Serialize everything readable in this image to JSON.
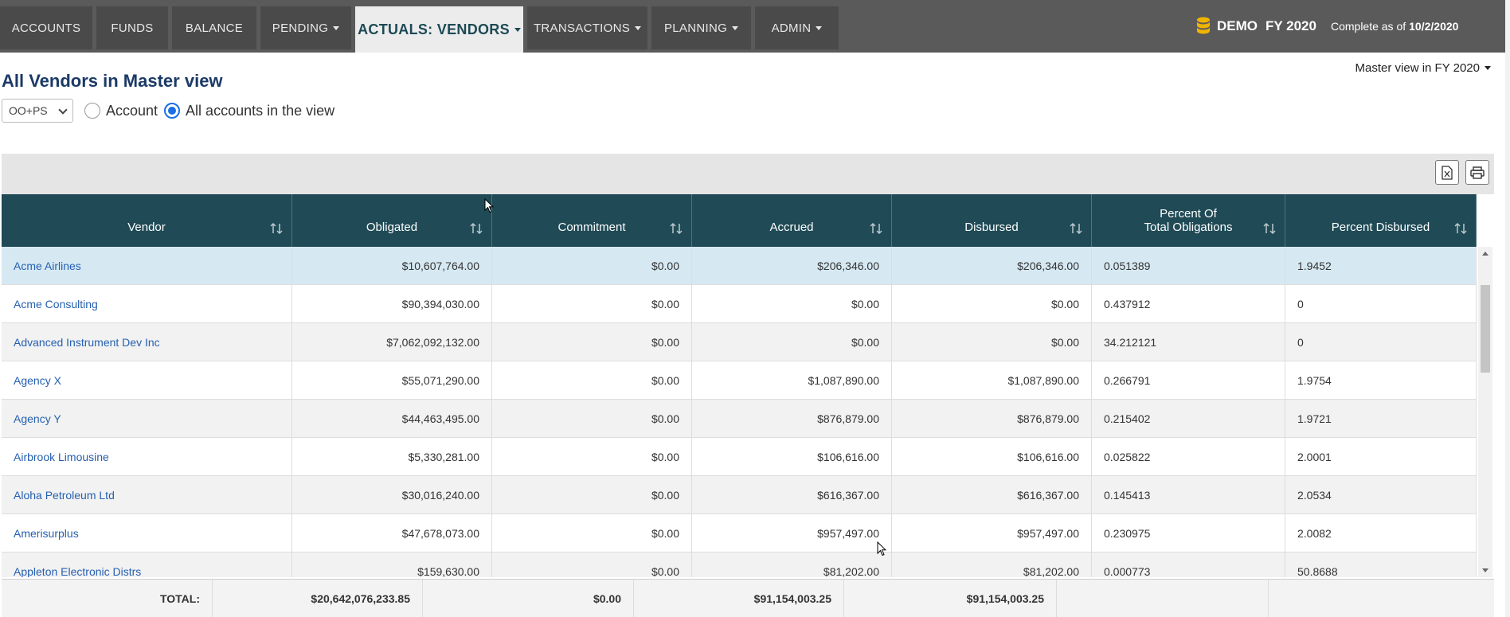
{
  "nav": {
    "tabs": [
      {
        "label": "ACCOUNTS",
        "dropdown": false
      },
      {
        "label": "FUNDS",
        "dropdown": false
      },
      {
        "label": "BALANCE",
        "dropdown": false
      },
      {
        "label": "PENDING",
        "dropdown": true
      },
      {
        "label": "ACTUALS: VENDORS",
        "dropdown": true,
        "active": true
      },
      {
        "label": "TRANSACTIONS",
        "dropdown": true
      },
      {
        "label": "PLANNING",
        "dropdown": true
      },
      {
        "label": "ADMIN",
        "dropdown": true
      }
    ],
    "brand_name": "DEMO",
    "fiscal_year": "FY 2020",
    "complete_label": "Complete as of",
    "complete_date": "10/2/2020",
    "icon": "database-icon",
    "accent": "#f0b400"
  },
  "page": {
    "title": "All Vendors in Master view",
    "view_selector": "Master view in FY 2020"
  },
  "filters": {
    "dropdown_value": "OO+PS",
    "radio_account": "Account",
    "radio_all": "All accounts in the view",
    "selected": "All accounts in the view"
  },
  "toolbar": {
    "excel_icon": "excel-export-icon",
    "print_icon": "print-icon"
  },
  "table": {
    "columns": [
      "Vendor",
      "Obligated",
      "Commitment",
      "Accrued",
      "Disbursed",
      "Percent Of\nTotal Obligations",
      "Percent Disbursed"
    ],
    "rows": [
      [
        "Acme Airlines",
        "$10,607,764.00",
        "$0.00",
        "$206,346.00",
        "$206,346.00",
        "0.051389",
        "1.9452"
      ],
      [
        "Acme Consulting",
        "$90,394,030.00",
        "$0.00",
        "$0.00",
        "$0.00",
        "0.437912",
        "0"
      ],
      [
        "Advanced Instrument Dev Inc",
        "$7,062,092,132.00",
        "$0.00",
        "$0.00",
        "$0.00",
        "34.212121",
        "0"
      ],
      [
        "Agency X",
        "$55,071,290.00",
        "$0.00",
        "$1,087,890.00",
        "$1,087,890.00",
        "0.266791",
        "1.9754"
      ],
      [
        "Agency Y",
        "$44,463,495.00",
        "$0.00",
        "$876,879.00",
        "$876,879.00",
        "0.215402",
        "1.9721"
      ],
      [
        "Airbrook Limousine",
        "$5,330,281.00",
        "$0.00",
        "$106,616.00",
        "$106,616.00",
        "0.025822",
        "2.0001"
      ],
      [
        "Aloha Petroleum Ltd",
        "$30,016,240.00",
        "$0.00",
        "$616,367.00",
        "$616,367.00",
        "0.145413",
        "2.0534"
      ],
      [
        "Amerisurplus",
        "$47,678,073.00",
        "$0.00",
        "$957,497.00",
        "$957,497.00",
        "0.230975",
        "2.0082"
      ],
      [
        "Appleton Electronic Distrs",
        "$159,630.00",
        "$0.00",
        "$81,202.00",
        "$81,202.00",
        "0.000773",
        "50.8688"
      ]
    ],
    "total": {
      "label": "TOTAL:",
      "obligated": "$20,642,076,233.85",
      "commitment": "$0.00",
      "accrued": "$91,154,003.25",
      "disbursed": "$91,154,003.25"
    }
  }
}
